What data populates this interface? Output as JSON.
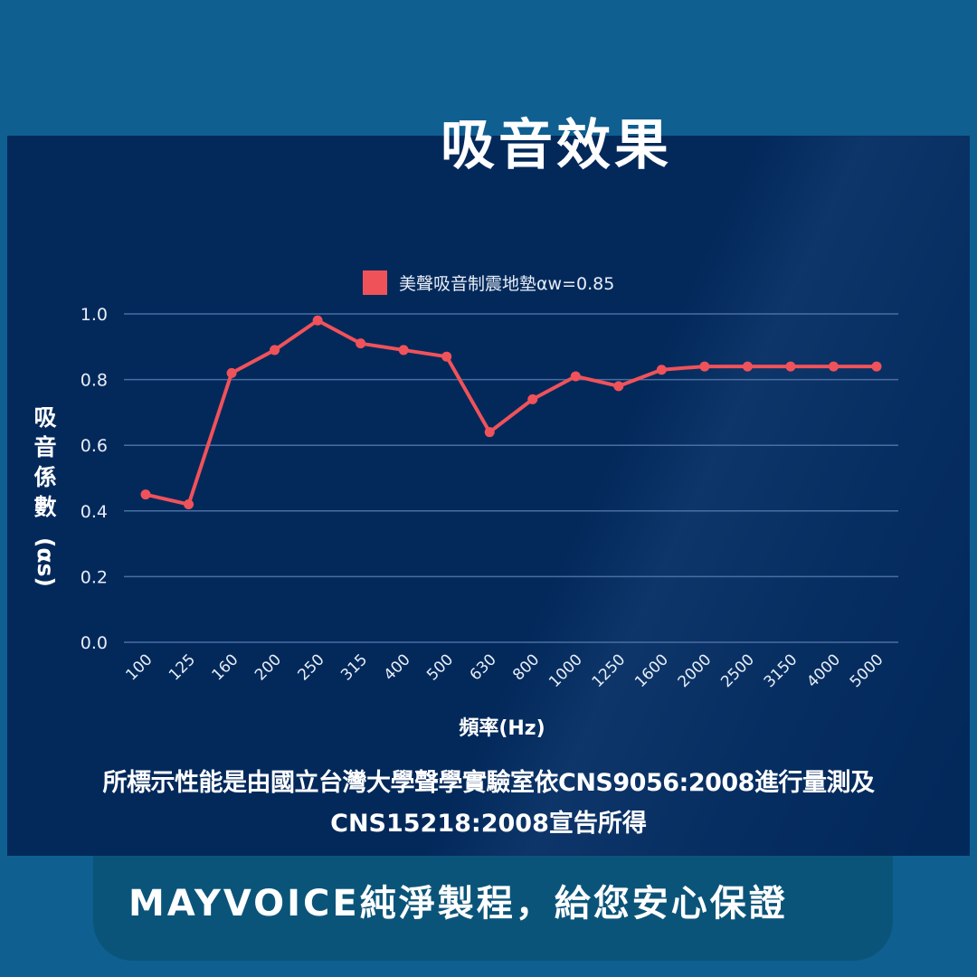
{
  "header": {
    "title": "吸音效果"
  },
  "chart_data": {
    "type": "line",
    "title": "吸音效果",
    "legend": [
      {
        "name": "美聲吸音制震地墊αw=0.85",
        "color": "#f0525a"
      }
    ],
    "legend_position": "top",
    "xlabel": "頻率(Hz)",
    "ylabel": "吸音係數(αs)",
    "ylim": [
      0.0,
      1.0
    ],
    "yticks": [
      "0.0",
      "0.2",
      "0.4",
      "0.6",
      "0.8",
      "1.0"
    ],
    "grid": true,
    "categories": [
      "100",
      "125",
      "160",
      "200",
      "250",
      "315",
      "400",
      "500",
      "630",
      "800",
      "1000",
      "1250",
      "1600",
      "2000",
      "2500",
      "3150",
      "4000",
      "5000"
    ],
    "series": [
      {
        "name": "美聲吸音制震地墊αw=0.85",
        "color": "#f0525a",
        "values": [
          0.45,
          0.42,
          0.82,
          0.89,
          0.98,
          0.91,
          0.89,
          0.87,
          0.64,
          0.74,
          0.81,
          0.78,
          0.83,
          0.84,
          0.84,
          0.84,
          0.84,
          0.84
        ]
      }
    ]
  },
  "footnote": {
    "line1": "所標示性能是由國立台灣大學聲學實驗室依CNS9056:2008進行量測及",
    "line2": "CNS15218:2008宣告所得"
  },
  "banner": {
    "text": "MAYVOICE純淨製程，給您安心保證"
  },
  "colors": {
    "background": "#0f5f91",
    "panel": "#03295b",
    "banner": "#0b5479",
    "line": "#f0525a",
    "grid": "#4a6ea3",
    "text": "#ffffff"
  }
}
